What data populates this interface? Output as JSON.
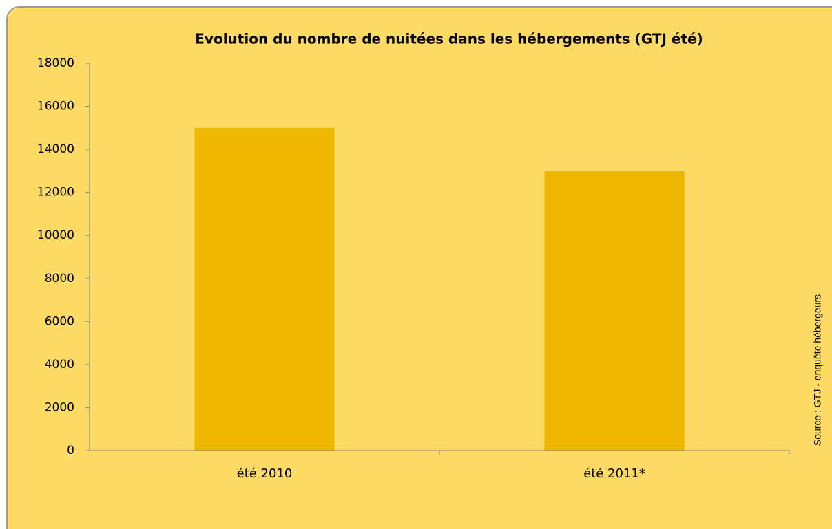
{
  "chart_data": {
    "type": "bar",
    "title": "Evolution du nombre de nuitées dans les hébergements (GTJ été)",
    "categories": [
      "été 2010",
      "été 2011*"
    ],
    "values": [
      15000,
      13000
    ],
    "color": "#edb600",
    "ylim": [
      0,
      18000
    ],
    "yticks": [
      0,
      2000,
      4000,
      6000,
      8000,
      10000,
      12000,
      14000,
      16000,
      18000
    ],
    "source": "Source : GTJ - enquête hébergeurs"
  }
}
